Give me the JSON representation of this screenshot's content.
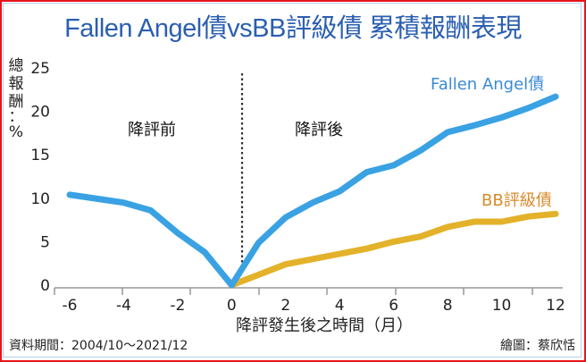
{
  "title": "Fallen Angel債vsBB評級債  累積報酬表現",
  "colors": {
    "fallen_angel": "#3aa2e3",
    "bb": "#e3b22a",
    "bb_label": "#d88a2a",
    "fa_label": "#3a8ad6",
    "title": "#2b5fb0",
    "frame": "#e8141b"
  },
  "yaxis": {
    "label_chars": [
      "總",
      "報",
      "酬",
      "：",
      "%"
    ],
    "ticks": [
      "0",
      "5",
      "10",
      "15",
      "20",
      "25"
    ]
  },
  "xaxis": {
    "ticks": [
      "-6",
      "-4",
      "-2",
      "0",
      "2",
      "4",
      "6",
      "8",
      "10",
      "12"
    ],
    "title": "降評發生後之時間（月）"
  },
  "regions": {
    "before": "降評前",
    "after": "降評後"
  },
  "series_labels": {
    "fallen_angel": "Fallen Angel債",
    "bb": "BB評級債"
  },
  "footer": {
    "source": "資料期間：2004/10～2021/12",
    "credit": "繪圖：蔡欣恬"
  },
  "chart_data": {
    "type": "line",
    "title": "Fallen Angel債vsBB評級債 累積報酬表現",
    "xlabel": "降評發生後之時間（月）",
    "ylabel": "總報酬：%",
    "xlim": [
      -6,
      12
    ],
    "ylim": [
      0,
      25
    ],
    "x_ticks": [
      -6,
      -4,
      -2,
      0,
      2,
      4,
      6,
      8,
      10,
      12
    ],
    "y_ticks": [
      0,
      5,
      10,
      15,
      20,
      25
    ],
    "grid": false,
    "annotations": [
      {
        "text": "降評前",
        "region": "x<0"
      },
      {
        "text": "降評後",
        "region": "x>0"
      },
      {
        "type": "vertical-dotted-line",
        "x": 0.4
      }
    ],
    "series": [
      {
        "name": "Fallen Angel債",
        "color": "#3aa2e3",
        "x": [
          -6,
          -4,
          -3,
          -2,
          -1,
          0,
          1,
          2,
          3,
          4,
          5,
          6,
          7,
          8,
          9,
          10,
          11,
          12
        ],
        "values": [
          10.4,
          9.5,
          8.6,
          6.0,
          3.8,
          0,
          4.9,
          7.8,
          9.5,
          10.8,
          13.0,
          13.8,
          15.5,
          17.6,
          18.4,
          19.3,
          20.4,
          21.7
        ]
      },
      {
        "name": "BB評級債",
        "color": "#e3b22a",
        "x": [
          0,
          2,
          4,
          5,
          6,
          7,
          8,
          9,
          10,
          11,
          12
        ],
        "values": [
          0,
          2.4,
          3.6,
          4.2,
          5.0,
          5.6,
          6.7,
          7.3,
          7.3,
          7.9,
          8.2
        ]
      }
    ]
  }
}
